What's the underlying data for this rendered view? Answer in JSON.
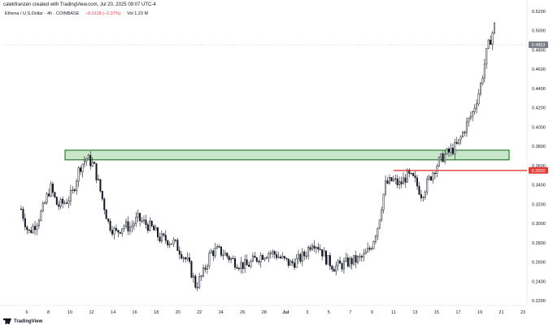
{
  "header": {
    "credit": "calebfranzen created with TradingView.com, Jul 20, 2025 09:07 UTC-4",
    "symbol": "Ethena / U.S.Dollar · 4h · COINBASE",
    "change": "−0.0118 (−2.37%)",
    "volume": "Vol 1.23 M"
  },
  "footer": {
    "logo_text": "TradingView"
  },
  "colors": {
    "up": "#131722",
    "down": "#131722",
    "zone_fill": "#c8e6c9",
    "zone_stroke": "#2e7d32",
    "support_line": "#e53935",
    "price_tag": "#787b86"
  },
  "chart_data": {
    "type": "candlestick",
    "y_ticks": [
      "0.5200",
      "0.5000",
      "0.4800",
      "0.4600",
      "0.4400",
      "0.4200",
      "0.4000",
      "0.3800",
      "0.3600",
      "0.3400",
      "0.3200",
      "0.3000",
      "0.2800",
      "0.2600",
      "0.2400",
      "0.2200"
    ],
    "x_ticks": [
      "6",
      "8",
      "10",
      "12",
      "14",
      "16",
      "18",
      "20",
      "22",
      "24",
      "26",
      "28",
      "Jul",
      "3",
      "5",
      "7",
      "9",
      "11",
      "13",
      "15",
      "17",
      "19",
      "21",
      "23"
    ],
    "ylim": [
      0.215,
      0.525
    ],
    "current_price_label": "0.4853",
    "current_price": 0.4853,
    "support_label": "0.3550",
    "support_price": 0.355,
    "resistance_zone": {
      "low": 0.366,
      "high": 0.376
    },
    "close_path": [
      [
        0,
        0.315
      ],
      [
        1,
        0.29
      ],
      [
        2,
        0.3
      ],
      [
        3,
        0.315
      ],
      [
        4,
        0.338
      ],
      [
        5,
        0.318
      ],
      [
        6,
        0.322
      ],
      [
        7,
        0.33
      ],
      [
        8,
        0.358
      ],
      [
        9,
        0.368
      ],
      [
        10,
        0.36
      ],
      [
        11,
        0.33
      ],
      [
        12,
        0.3
      ],
      [
        13,
        0.29
      ],
      [
        14,
        0.298
      ],
      [
        15,
        0.296
      ],
      [
        16,
        0.305
      ],
      [
        17,
        0.3
      ],
      [
        18,
        0.295
      ],
      [
        19,
        0.285
      ],
      [
        20,
        0.283
      ],
      [
        21,
        0.28
      ],
      [
        22,
        0.27
      ],
      [
        23,
        0.258
      ],
      [
        24,
        0.235
      ],
      [
        25,
        0.248
      ],
      [
        26,
        0.27
      ],
      [
        27,
        0.272
      ],
      [
        28,
        0.268
      ],
      [
        29,
        0.262
      ],
      [
        30,
        0.258
      ],
      [
        31,
        0.256
      ],
      [
        32,
        0.262
      ],
      [
        33,
        0.267
      ],
      [
        34,
        0.27
      ],
      [
        35,
        0.268
      ],
      [
        36,
        0.262
      ],
      [
        37,
        0.258
      ],
      [
        38,
        0.262
      ],
      [
        39,
        0.268
      ],
      [
        40,
        0.282
      ],
      [
        41,
        0.275
      ],
      [
        42,
        0.262
      ],
      [
        43,
        0.255
      ],
      [
        44,
        0.257
      ],
      [
        45,
        0.26
      ],
      [
        46,
        0.262
      ],
      [
        47,
        0.265
      ],
      [
        48,
        0.275
      ],
      [
        49,
        0.298
      ],
      [
        50,
        0.34
      ],
      [
        51,
        0.345
      ],
      [
        52,
        0.34
      ],
      [
        53,
        0.35
      ],
      [
        54,
        0.345
      ],
      [
        55,
        0.33
      ],
      [
        56,
        0.345
      ],
      [
        57,
        0.36
      ],
      [
        58,
        0.37
      ],
      [
        59,
        0.375
      ],
      [
        60,
        0.382
      ],
      [
        61,
        0.4
      ],
      [
        62,
        0.415
      ],
      [
        63,
        0.44
      ],
      [
        64,
        0.48
      ],
      [
        65,
        0.505
      ]
    ]
  }
}
